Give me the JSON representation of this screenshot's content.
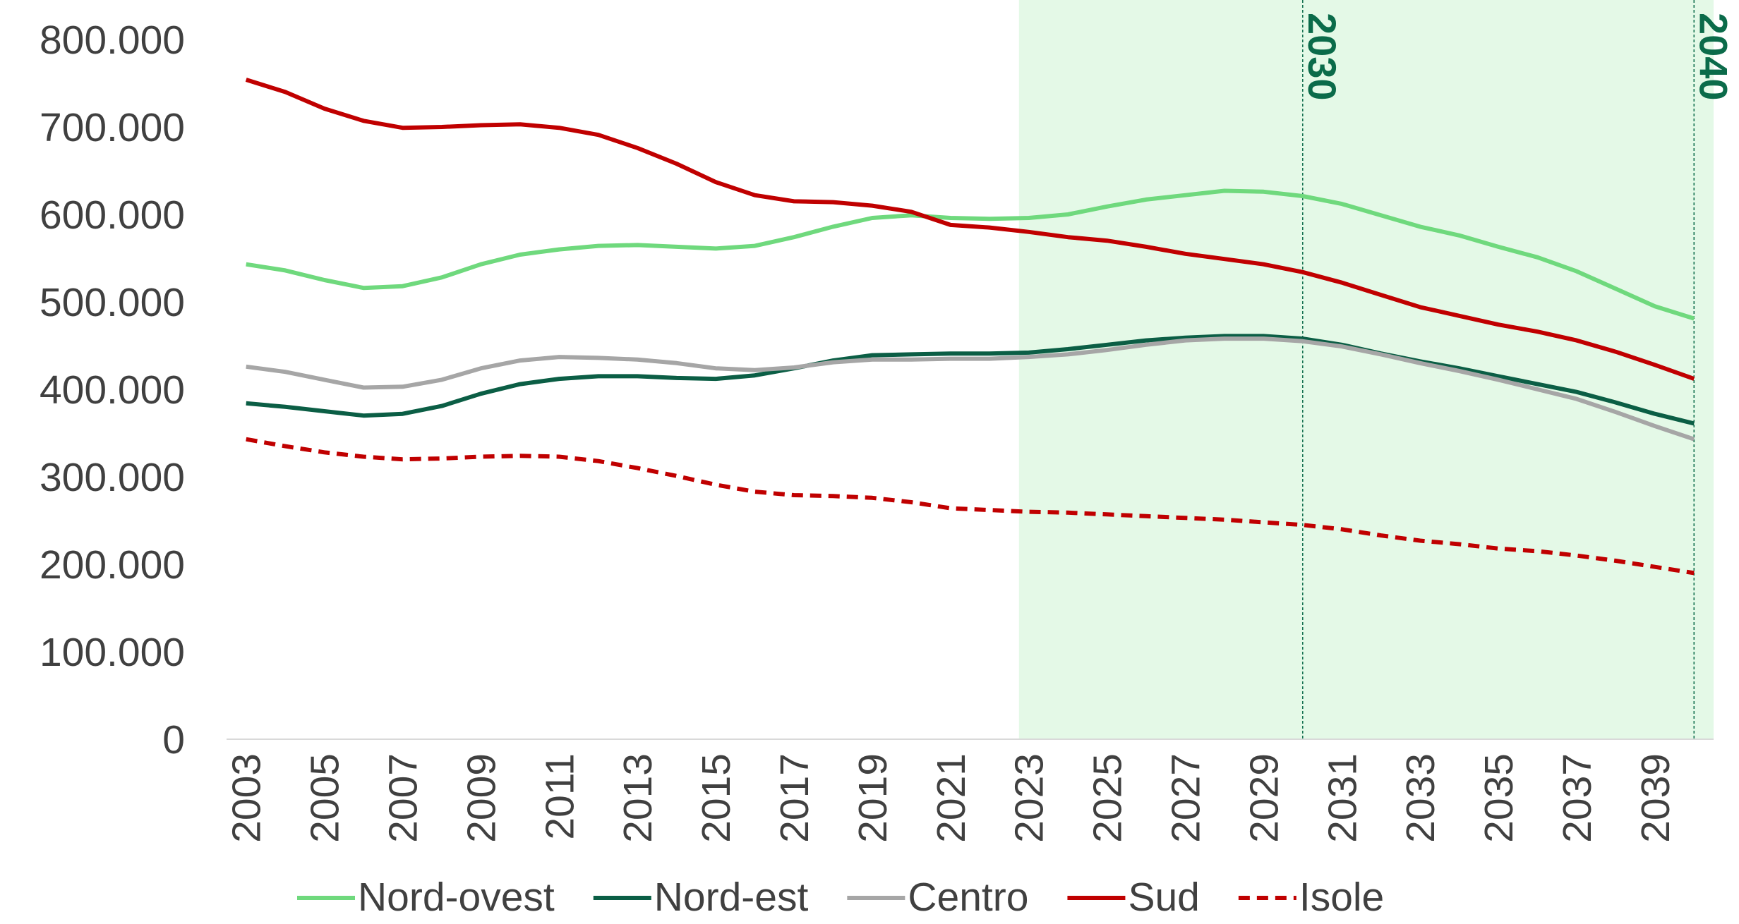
{
  "chart_data": {
    "type": "line",
    "x": [
      2003,
      2004,
      2005,
      2006,
      2007,
      2008,
      2009,
      2010,
      2011,
      2012,
      2013,
      2014,
      2015,
      2016,
      2017,
      2018,
      2019,
      2020,
      2021,
      2022,
      2023,
      2024,
      2025,
      2026,
      2027,
      2028,
      2029,
      2030,
      2031,
      2032,
      2033,
      2034,
      2035,
      2036,
      2037,
      2038,
      2039,
      2040
    ],
    "xlim": [
      2002.5,
      2040.5
    ],
    "xticks": [
      2003,
      2005,
      2007,
      2009,
      2011,
      2013,
      2015,
      2017,
      2019,
      2021,
      2023,
      2025,
      2027,
      2029,
      2031,
      2033,
      2035,
      2037,
      2039
    ],
    "ylim": [
      0,
      800000
    ],
    "yticks": [
      0,
      {
        "value": 100000,
        "label": "100.000"
      },
      {
        "value": 200000,
        "label": "200.000"
      },
      {
        "value": 300000,
        "label": "300.000"
      },
      {
        "value": 400000,
        "label": "400.000"
      },
      {
        "value": 500000,
        "label": "500.000"
      },
      {
        "value": 600000,
        "label": "600.000"
      },
      {
        "value": 700000,
        "label": "700.000"
      },
      {
        "value": 800000,
        "label": "800.000"
      }
    ],
    "grid": false,
    "legend": "bottom",
    "highlight_xlim": [
      2022.75,
      2040.5
    ],
    "highlight_color": "#e4f9e7",
    "annotations": [
      2030,
      2040
    ],
    "annotation_color": "#0b6b4a",
    "series": [
      {
        "name": "Nord-ovest",
        "color": "#6fd97d",
        "dashed": false,
        "values": [
          543000,
          536000,
          525000,
          516000,
          518000,
          528000,
          543000,
          554000,
          560000,
          564000,
          565000,
          563000,
          561000,
          564000,
          574000,
          586000,
          596000,
          599000,
          596000,
          595000,
          596000,
          600000,
          609000,
          617000,
          622000,
          627000,
          626000,
          621000,
          612000,
          599000,
          586000,
          576000,
          563000,
          551000,
          535000,
          515000,
          495000,
          481000
        ]
      },
      {
        "name": "Nord-est",
        "color": "#0b5e45",
        "dashed": false,
        "values": [
          384000,
          380000,
          375000,
          370000,
          372000,
          381000,
          395000,
          406000,
          412000,
          415000,
          415000,
          413000,
          412000,
          416000,
          424000,
          433000,
          439000,
          440000,
          441000,
          441000,
          442000,
          446000,
          451000,
          456000,
          459000,
          461000,
          461000,
          458000,
          451000,
          441000,
          432000,
          424000,
          415000,
          406000,
          397000,
          385000,
          372000,
          361000
        ]
      },
      {
        "name": "Centro",
        "color": "#a6a6a6",
        "dashed": false,
        "values": [
          426000,
          420000,
          411000,
          402000,
          403000,
          411000,
          424000,
          433000,
          437000,
          436000,
          434000,
          430000,
          424000,
          422000,
          425000,
          431000,
          434000,
          434000,
          435000,
          435000,
          437000,
          440000,
          445000,
          451000,
          456000,
          458000,
          458000,
          455000,
          449000,
          440000,
          430000,
          421000,
          411000,
          400000,
          389000,
          374000,
          358000,
          343000
        ]
      },
      {
        "name": "Sud",
        "color": "#c00000",
        "dashed": false,
        "values": [
          754000,
          740000,
          721000,
          707000,
          699000,
          700000,
          702000,
          703000,
          699000,
          691000,
          676000,
          658000,
          637000,
          622000,
          615000,
          614000,
          610000,
          603000,
          588000,
          585000,
          580000,
          574000,
          570000,
          563000,
          555000,
          549000,
          543000,
          534000,
          522000,
          508000,
          494000,
          484000,
          474000,
          466000,
          456000,
          443000,
          428000,
          412000
        ]
      },
      {
        "name": "Isole",
        "color": "#c00000",
        "dashed": true,
        "values": [
          343000,
          335000,
          328000,
          323000,
          320000,
          321000,
          323000,
          324000,
          323000,
          318000,
          310000,
          301000,
          291000,
          283000,
          279000,
          278000,
          276000,
          271000,
          264000,
          262000,
          260000,
          259000,
          257000,
          255000,
          253000,
          251000,
          248000,
          245000,
          240000,
          233000,
          227000,
          223000,
          218000,
          215000,
          210000,
          204000,
          197000,
          190000
        ]
      }
    ]
  }
}
